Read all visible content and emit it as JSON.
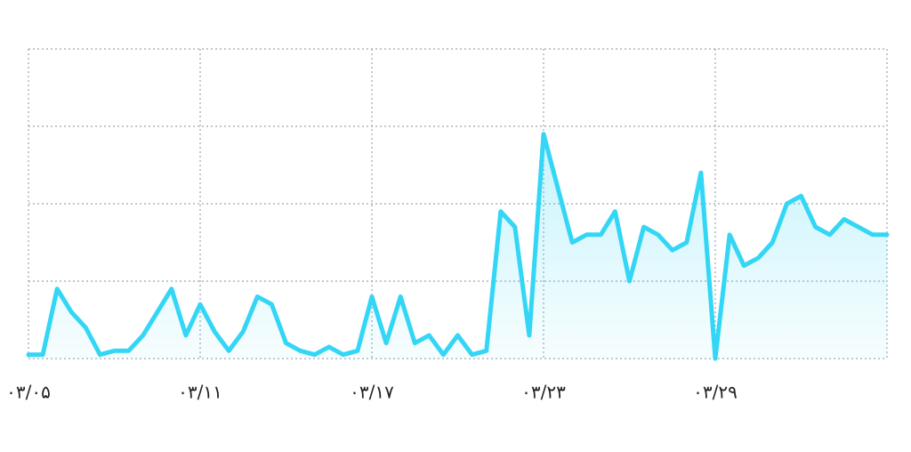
{
  "chart_data": {
    "type": "line",
    "x": [
      0,
      0.5,
      1,
      1.5,
      2,
      2.5,
      3,
      3.5,
      4,
      4.5,
      5,
      5.5,
      6,
      6.5,
      7,
      7.5,
      8,
      8.5,
      9,
      9.5,
      10,
      10.5,
      11,
      11.5,
      12,
      12.5,
      13,
      13.5,
      14,
      14.5,
      15,
      15.5,
      16,
      16.5,
      17,
      17.5,
      18,
      18.5,
      19,
      19.5,
      20,
      20.5,
      21,
      21.5,
      22,
      22.5,
      23,
      23.5,
      24,
      24.5,
      25,
      25.5,
      26,
      26.5,
      27,
      27.5,
      28,
      28.5,
      29,
      29.5,
      30
    ],
    "series": [
      {
        "color": "#33d6f5",
        "values": [
          0.05,
          0.05,
          0.9,
          0.6,
          0.4,
          0.05,
          0.1,
          0.1,
          0.3,
          0.6,
          0.9,
          0.3,
          0.7,
          0.35,
          0.1,
          0.35,
          0.8,
          0.7,
          0.2,
          0.1,
          0.05,
          0.15,
          0.05,
          0.1,
          0.8,
          0.2,
          0.8,
          0.2,
          0.3,
          0.05,
          0.3,
          0.05,
          0.1,
          1.9,
          1.7,
          0.3,
          2.9,
          2.2,
          1.5,
          1.6,
          1.6,
          1.9,
          1.0,
          1.7,
          1.6,
          1.4,
          1.5,
          2.4,
          0.0,
          1.6,
          1.2,
          1.3,
          1.5,
          2.0,
          2.1,
          1.7,
          1.6,
          1.8,
          1.7,
          1.6,
          1.6
        ]
      }
    ],
    "xlim": [
      0,
      30
    ],
    "xticks": [
      {
        "value": 0,
        "label": "۰۳/۰۵"
      },
      {
        "value": 6,
        "label": "۰۳/۱۱"
      },
      {
        "value": 12,
        "label": "۰۳/۱۷"
      },
      {
        "value": 18,
        "label": "۰۳/۲۳"
      },
      {
        "value": 24,
        "label": "۰۳/۲۹"
      }
    ],
    "ylim": [
      0,
      4
    ],
    "yticks": [
      0,
      1,
      2,
      3,
      4
    ],
    "grid": true
  }
}
